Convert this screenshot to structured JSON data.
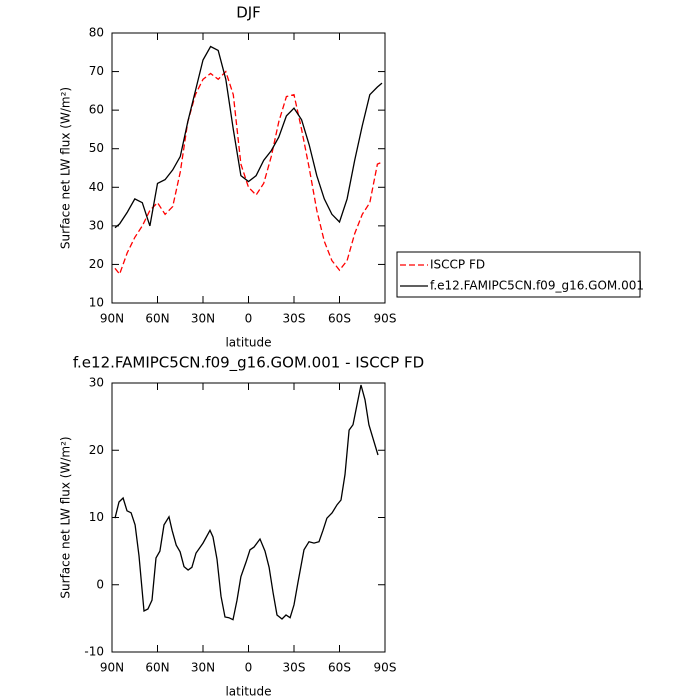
{
  "chart_data": [
    {
      "type": "line",
      "title": "DJF",
      "xlabel": "latitude",
      "ylabel": "Surface net LW flux (W/m²)",
      "x": [
        88,
        85,
        80,
        75,
        70,
        65,
        60,
        55,
        50,
        45,
        40,
        35,
        30,
        25,
        20,
        15,
        10,
        5,
        0,
        -5,
        -10,
        -15,
        -20,
        -25,
        -30,
        -35,
        -40,
        -45,
        -50,
        -55,
        -60,
        -65,
        -70,
        -75,
        -80,
        -85,
        -88
      ],
      "series": [
        {
          "name": "ISCCP FD",
          "color": "#ff0000",
          "dashed": true,
          "values": [
            19,
            17.5,
            23,
            27,
            30,
            34,
            36,
            33,
            35,
            44,
            57,
            64,
            68,
            69.5,
            68,
            70,
            64,
            46,
            40,
            38,
            41,
            48,
            57,
            63.5,
            64,
            55,
            45,
            34,
            26,
            21,
            18.5,
            21,
            28,
            33,
            36,
            46,
            46.5
          ]
        },
        {
          "name": "f.e12.FAMIPC5CN.f09_g16.GOM.001",
          "color": "#000000",
          "dashed": false,
          "values": [
            29.5,
            30.5,
            33.5,
            37,
            36,
            30,
            41,
            42,
            44.5,
            48,
            57,
            65,
            73,
            76.5,
            75.5,
            68,
            55,
            43,
            41.5,
            43,
            47,
            49.5,
            53,
            58.5,
            60.5,
            57.5,
            51,
            43,
            37,
            33,
            31,
            37,
            47,
            56,
            64,
            66,
            67
          ]
        }
      ],
      "xlim": [
        90,
        -90
      ],
      "xticks": [
        {
          "value": 90,
          "label": "90N"
        },
        {
          "value": 60,
          "label": "60N"
        },
        {
          "value": 30,
          "label": "30N"
        },
        0,
        {
          "value": -30,
          "label": "30S"
        },
        {
          "value": -60,
          "label": "60S"
        },
        {
          "value": -90,
          "label": "90S"
        }
      ],
      "ylim": [
        10,
        80
      ],
      "yticks": [
        10,
        20,
        30,
        40,
        50,
        60,
        70,
        80
      ],
      "legend": "outside-right"
    },
    {
      "type": "line",
      "title": "f.e12.FAMIPC5CN.f09_g16.GOM.001 - ISCCP FD",
      "xlabel": "latitude",
      "ylabel": "Surface net LW flux (W/m²)",
      "x": [
        88.0,
        85.4,
        82.7,
        80.1,
        77.4,
        74.8,
        72.2,
        68.9,
        66.3,
        63.6,
        61.0,
        58.4,
        55.7,
        52.4,
        50.4,
        47.7,
        45.1,
        42.5,
        39.8,
        37.3,
        34.6,
        30.0,
        25.4,
        23.4,
        20.8,
        18.1,
        15.5,
        12.9,
        10.2,
        7.6,
        5.0,
        1.6,
        -1.0,
        -3.6,
        -7.6,
        -10.9,
        -13.6,
        -16.2,
        -18.8,
        -22.1,
        -24.7,
        -27.4,
        -30.0,
        -32.6,
        -36.6,
        -39.9,
        -43.2,
        -46.5,
        -49.1,
        -51.7,
        -55.1,
        -58.4,
        -61.0,
        -63.6,
        -66.3,
        -68.9,
        -71.5,
        -74.2,
        -76.8,
        -79.4,
        -82.0,
        -85.4
      ],
      "series": [
        {
          "color": "#000000",
          "dashed": false,
          "values": [
            9.9,
            12.3,
            12.9,
            11.0,
            10.7,
            8.9,
            4.3,
            -3.9,
            -3.6,
            -2.3,
            4.0,
            5.0,
            8.9,
            10.1,
            8.1,
            5.9,
            4.9,
            2.7,
            2.2,
            2.6,
            4.7,
            6.2,
            8.1,
            7.1,
            3.8,
            -1.7,
            -4.8,
            -4.9,
            -5.2,
            -2.3,
            1.2,
            3.4,
            5.2,
            5.6,
            6.8,
            5.0,
            2.6,
            -1.2,
            -4.5,
            -5.1,
            -4.5,
            -4.9,
            -3.0,
            0.3,
            5.2,
            6.4,
            6.2,
            6.4,
            8.1,
            9.9,
            10.7,
            11.9,
            12.6,
            16.4,
            23.0,
            23.8,
            26.7,
            29.7,
            27.5,
            23.8,
            21.8,
            19.3
          ]
        }
      ],
      "xlim": [
        90,
        -90
      ],
      "xticks": [
        {
          "value": 90,
          "label": "90N"
        },
        {
          "value": 60,
          "label": "60N"
        },
        {
          "value": 30,
          "label": "30N"
        },
        0,
        {
          "value": -30,
          "label": "30S"
        },
        {
          "value": -60,
          "label": "60S"
        },
        {
          "value": -90,
          "label": "90S"
        }
      ],
      "ylim": [
        -10,
        30
      ],
      "yticks": [
        -10,
        0,
        10,
        20,
        30
      ]
    }
  ]
}
